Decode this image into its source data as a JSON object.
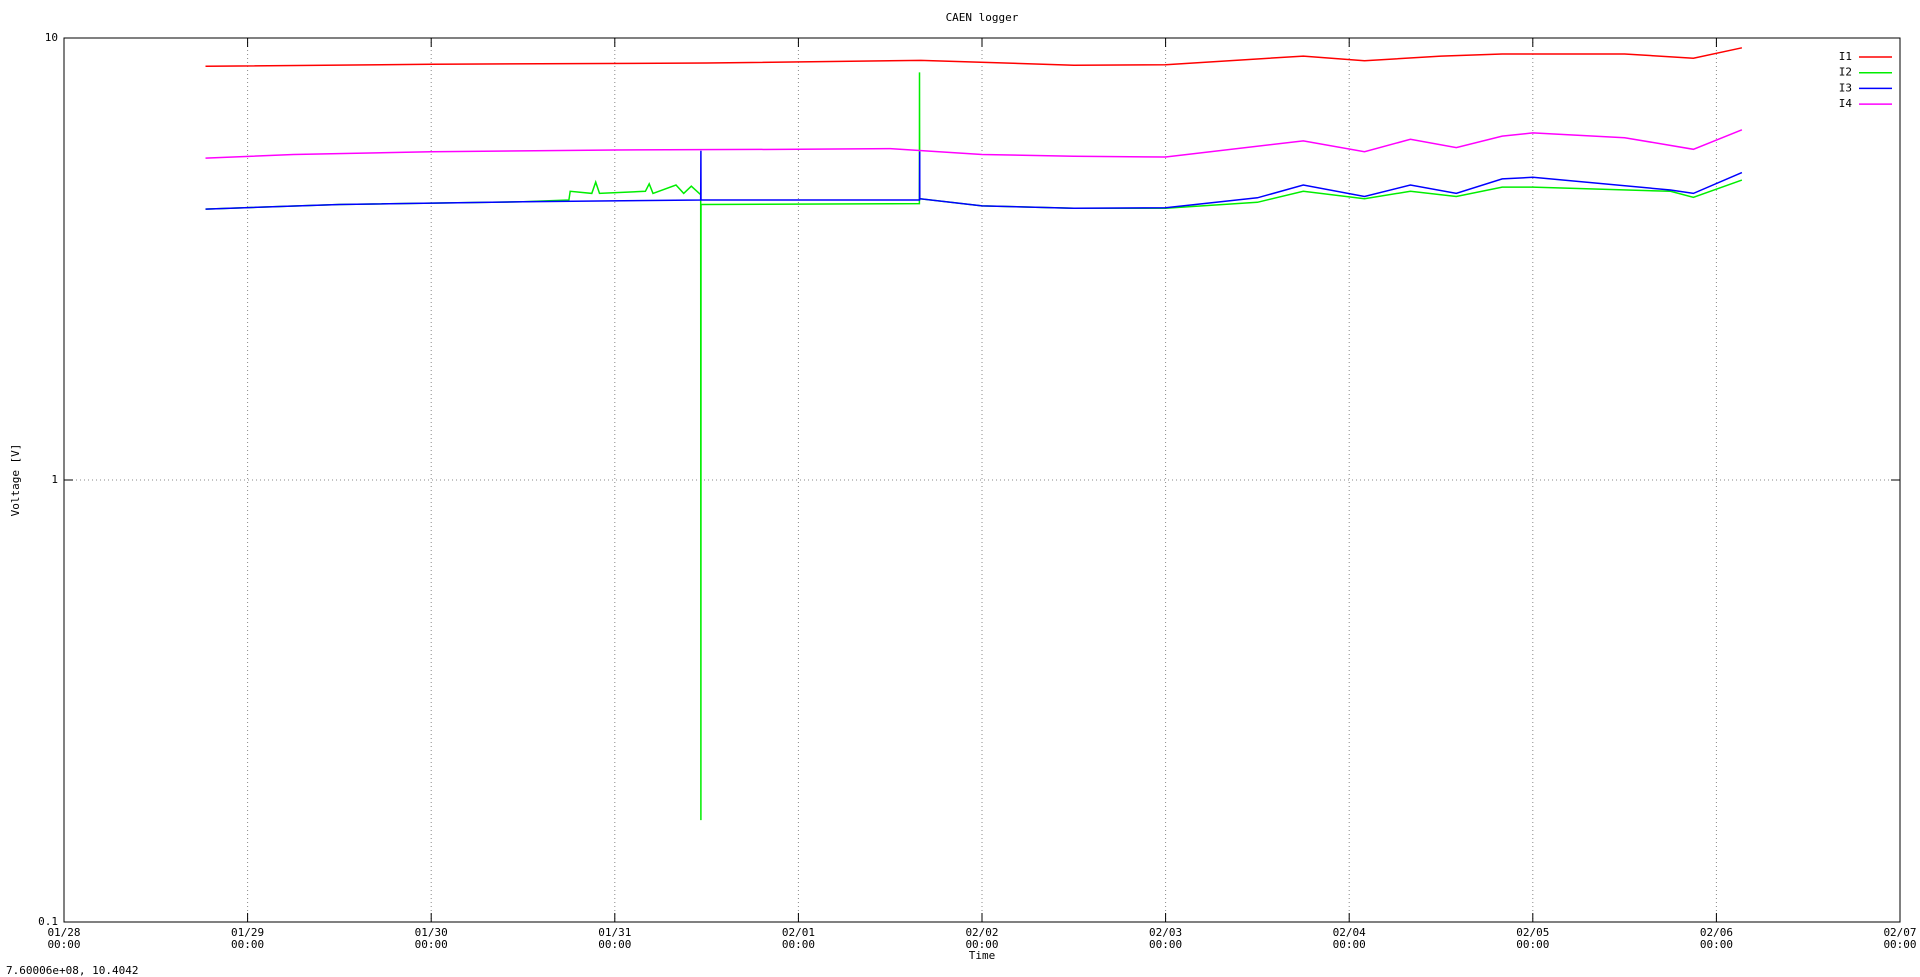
{
  "chart_data": {
    "type": "line",
    "title": "CAEN logger",
    "xlabel": "Time",
    "ylabel": "Voltage [V]",
    "annotation": "7.60006e+08,  10.4042",
    "logy": true,
    "grid": true,
    "legend": "top-right",
    "xlim": [
      "01/28 00:00",
      "02/07 00:00"
    ],
    "xticks": [
      "01/28 00:00",
      "01/29 00:00",
      "01/30 00:00",
      "01/31 00:00",
      "02/01 00:00",
      "02/02 00:00",
      "02/03 00:00",
      "02/04 00:00",
      "02/05 00:00",
      "02/06 00:00",
      "02/07 00:00"
    ],
    "ylim": [
      0.1,
      10
    ],
    "yticks": [
      0.1,
      1,
      10
    ],
    "series": [
      {
        "name": "I1",
        "color": "#ff0000",
        "x": [
          "01/28 18:30",
          "01/30 00:00",
          "01/31 12:00",
          "02/01 16:00",
          "02/02 12:00",
          "02/03 00:00",
          "02/03 18:00",
          "02/04 02:00",
          "02/04 12:00",
          "02/04 20:00",
          "02/05 12:00",
          "02/05 21:00",
          "02/06 03:20"
        ],
        "values": [
          8.63,
          8.72,
          8.78,
          8.9,
          8.68,
          8.7,
          9.1,
          8.88,
          9.1,
          9.2,
          9.2,
          9.0,
          9.5
        ]
      },
      {
        "name": "I2",
        "color": "#00ee00",
        "x": [
          "01/28 18:30",
          "01/29 12:00",
          "01/30 12:00",
          "01/30 18:00",
          "01/30 18:10",
          "01/30 21:00",
          "01/30 21:30",
          "01/30 22:00",
          "01/31 04:00",
          "01/31 04:30",
          "01/31 05:00",
          "01/31 08:00",
          "01/31 09:00",
          "01/31 10:00",
          "01/31 11:14",
          "01/31 11:15",
          "01/31 11:16",
          "02/01 15:49",
          "02/01 15:50",
          "02/01 15:51",
          "02/02 00:00",
          "02/02 12:00",
          "02/03 00:00",
          "02/03 12:00",
          "02/03 18:00",
          "02/04 02:00",
          "02/04 08:00",
          "02/04 14:00",
          "02/04 20:00",
          "02/05 00:00",
          "02/05 18:00",
          "02/05 21:00",
          "02/06 03:20"
        ],
        "values": [
          4.1,
          4.2,
          4.26,
          4.3,
          4.5,
          4.45,
          4.72,
          4.45,
          4.5,
          4.68,
          4.45,
          4.65,
          4.45,
          4.62,
          4.42,
          0.17,
          4.2,
          4.22,
          8.36,
          4.33,
          4.17,
          4.12,
          4.12,
          4.25,
          4.5,
          4.33,
          4.5,
          4.38,
          4.6,
          4.6,
          4.5,
          4.36,
          4.77
        ]
      },
      {
        "name": "I3",
        "color": "#0000ff",
        "x": [
          "01/28 18:30",
          "01/29 12:00",
          "01/30 12:00",
          "01/31 11:14",
          "01/31 11:15",
          "01/31 11:16",
          "02/01 15:50",
          "02/01 15:51",
          "02/01 15:52",
          "02/02 00:00",
          "02/02 12:00",
          "02/03 00:00",
          "02/03 12:00",
          "02/03 18:00",
          "02/04 02:00",
          "02/04 08:00",
          "02/04 14:00",
          "02/04 20:00",
          "02/05 00:00",
          "02/05 18:00",
          "02/05 21:00",
          "02/06 03:20"
        ],
        "values": [
          4.1,
          4.2,
          4.26,
          4.3,
          5.56,
          4.3,
          4.3,
          5.53,
          4.33,
          4.17,
          4.12,
          4.13,
          4.35,
          4.65,
          4.38,
          4.65,
          4.45,
          4.8,
          4.84,
          4.53,
          4.45,
          4.96
        ]
      },
      {
        "name": "I4",
        "color": "#ff00ff",
        "x": [
          "01/28 18:30",
          "01/29 06:00",
          "01/30 00:00",
          "01/31 00:00",
          "02/01 00:00",
          "02/01 12:00",
          "02/02 00:00",
          "02/02 12:00",
          "02/03 00:00",
          "02/03 18:00",
          "02/04 02:00",
          "02/04 08:00",
          "02/04 14:00",
          "02/04 20:00",
          "02/05 00:00",
          "02/05 12:00",
          "02/05 21:00",
          "02/06 03:20"
        ],
        "values": [
          5.35,
          5.45,
          5.53,
          5.58,
          5.6,
          5.62,
          5.45,
          5.4,
          5.38,
          5.85,
          5.53,
          5.9,
          5.65,
          6.0,
          6.1,
          5.95,
          5.6,
          6.2
        ]
      }
    ]
  }
}
